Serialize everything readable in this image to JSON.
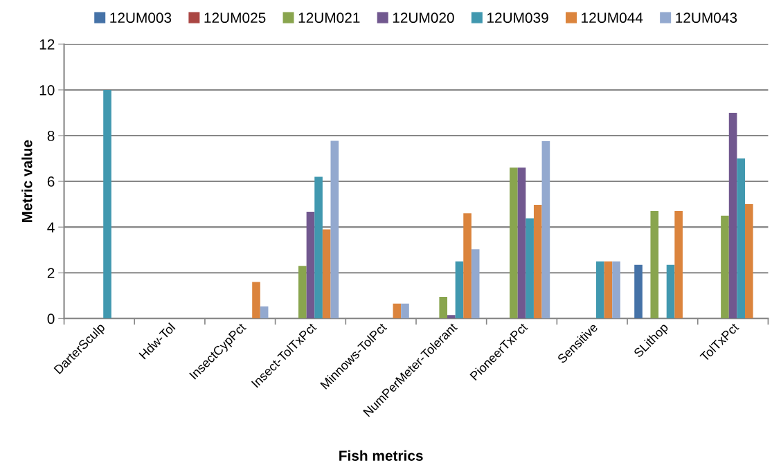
{
  "chart_data": {
    "type": "bar",
    "xlabel": "Fish metrics",
    "ylabel": "Metric value",
    "categories": [
      "DarterSculp",
      "Hdw-Tol",
      "InsectCypPct",
      "Insect-TolTxPct",
      "Minnows-TolPct",
      "NumPerMeter-Tolerant",
      "PioneerTxPct",
      "Sensitive",
      "SLithop",
      "TolTxPct"
    ],
    "series": [
      {
        "name": "12UM003",
        "color": "#4572a7",
        "values": [
          0,
          0,
          0,
          0,
          0,
          0,
          0,
          0,
          2.35,
          0
        ]
      },
      {
        "name": "12UM025",
        "color": "#aa4643",
        "values": [
          0,
          0,
          0,
          0,
          0,
          0,
          0,
          0,
          0,
          0
        ]
      },
      {
        "name": "12UM021",
        "color": "#89a54e",
        "values": [
          0,
          0,
          0,
          2.3,
          0,
          0.95,
          6.6,
          0,
          4.7,
          4.5
        ]
      },
      {
        "name": "12UM020",
        "color": "#71588f",
        "values": [
          0,
          0,
          0,
          4.67,
          0,
          0.15,
          6.6,
          0,
          0,
          9.0
        ]
      },
      {
        "name": "12UM039",
        "color": "#4198af",
        "values": [
          10,
          0,
          0,
          6.2,
          0,
          2.5,
          4.38,
          2.5,
          2.35,
          7.0
        ]
      },
      {
        "name": "12UM044",
        "color": "#db843d",
        "values": [
          0,
          0,
          1.6,
          3.9,
          0.65,
          4.6,
          4.97,
          2.5,
          4.7,
          5.0
        ]
      },
      {
        "name": "12UM043",
        "color": "#93a9cf",
        "values": [
          0,
          0,
          0.53,
          7.77,
          0.65,
          3.03,
          7.76,
          2.5,
          0,
          0
        ]
      }
    ],
    "ylim": [
      0,
      12
    ],
    "yticks": [
      0,
      2,
      4,
      6,
      8,
      10,
      12
    ],
    "grid": "y",
    "legend": "top"
  }
}
